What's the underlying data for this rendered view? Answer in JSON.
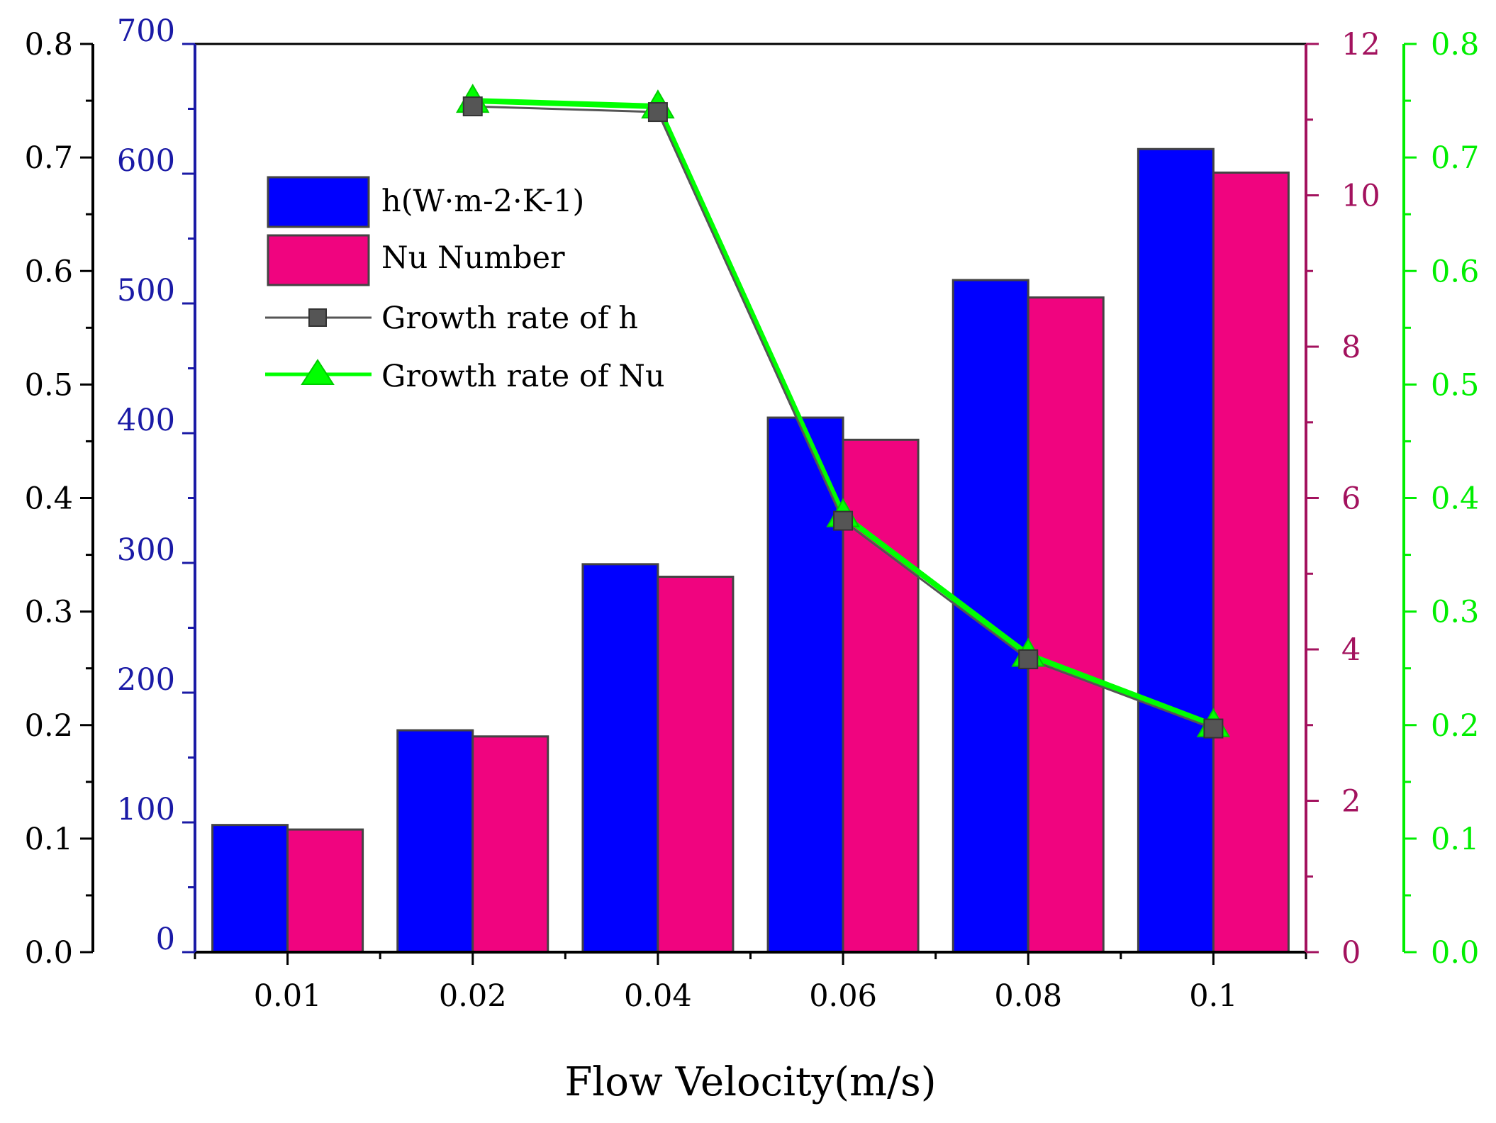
{
  "chart_data": {
    "type": "bar",
    "xlabel": "Flow Velocity(m/s)",
    "categories": [
      "0.01",
      "0.02",
      "0.04",
      "0.06",
      "0.08",
      "0.1"
    ],
    "bar_series": [
      {
        "name": "h(W·m-2·K-1)",
        "axis": "left_inner",
        "color": "#0000ff",
        "values": [
          98,
          171,
          299,
          412,
          518,
          619
        ]
      },
      {
        "name": "Nu Number",
        "axis": "right_inner",
        "color": "#f0047f",
        "values": [
          1.62,
          2.85,
          4.96,
          6.77,
          8.65,
          10.3
        ]
      }
    ],
    "line_series": [
      {
        "name": "Growth rate of h",
        "axis": "left_outer",
        "color": "#555555",
        "marker": "square",
        "x": [
          "0.02",
          "0.04",
          "0.06",
          "0.08",
          "0.1"
        ],
        "values": [
          0.745,
          0.74,
          0.38,
          0.258,
          0.197
        ]
      },
      {
        "name": "Growth rate of Nu",
        "axis": "right_outer",
        "color": "#00ff00",
        "marker": "triangle",
        "x": [
          "0.02",
          "0.04",
          "0.06",
          "0.08",
          "0.1"
        ],
        "values": [
          0.75,
          0.745,
          0.385,
          0.262,
          0.2
        ]
      }
    ],
    "axes": {
      "left_outer": {
        "min": 0,
        "max": 0.8,
        "ticks": [
          "0.0",
          "0.1",
          "0.2",
          "0.3",
          "0.4",
          "0.5",
          "0.6",
          "0.7",
          "0.8"
        ],
        "color": "#000000"
      },
      "left_inner": {
        "min": 0,
        "max": 700,
        "ticks": [
          "0",
          "100",
          "200",
          "300",
          "400",
          "500",
          "600",
          "700"
        ],
        "color": "#1a1aa6"
      },
      "right_inner": {
        "min": 0,
        "max": 12,
        "ticks": [
          "0",
          "2",
          "4",
          "6",
          "8",
          "10",
          "12"
        ],
        "color": "#a3125e"
      },
      "right_outer": {
        "min": 0,
        "max": 0.8,
        "ticks": [
          "0.0",
          "0.1",
          "0.2",
          "0.3",
          "0.4",
          "0.5",
          "0.6",
          "0.7",
          "0.8"
        ],
        "color": "#00ee00"
      }
    },
    "legend_position": "top-left",
    "grid": false
  }
}
